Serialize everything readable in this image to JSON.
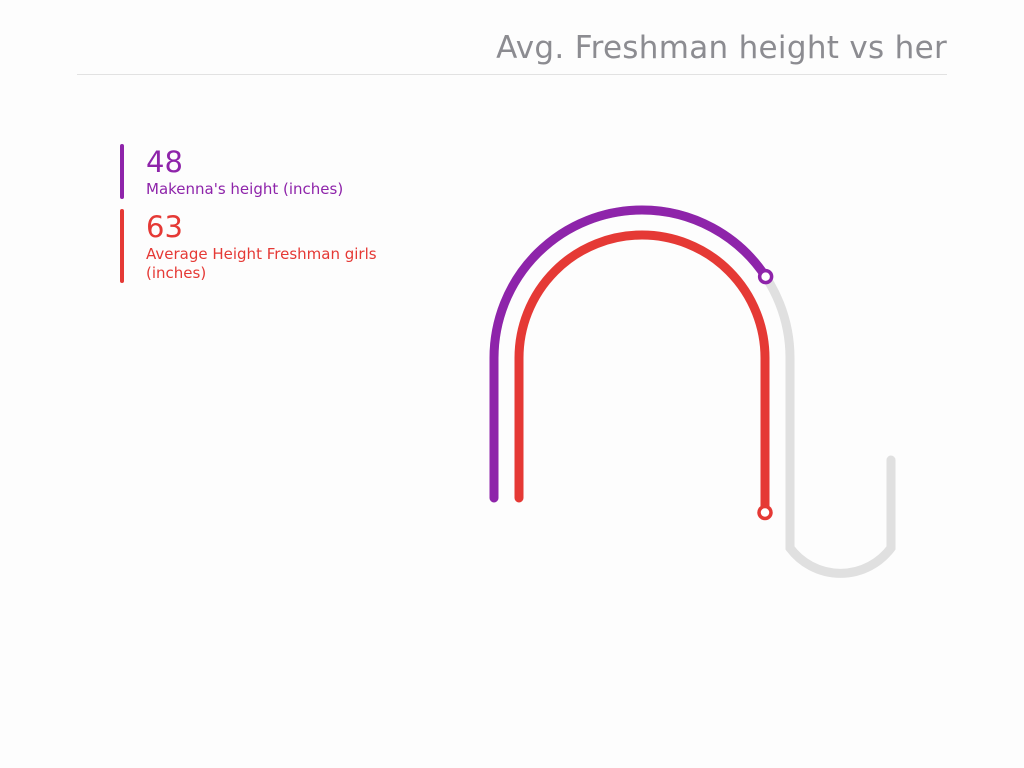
{
  "chart_data": {
    "type": "radial-bar",
    "title": "Avg. Freshman height vs her",
    "max": 100,
    "series": [
      {
        "name": "Makenna's height (inches)",
        "value": 48,
        "color": "#8e24aa"
      },
      {
        "name": "Average Height Freshman girls (inches)",
        "value": 63,
        "color": "#e53935"
      }
    ],
    "track_color": "#e0e0e0"
  }
}
